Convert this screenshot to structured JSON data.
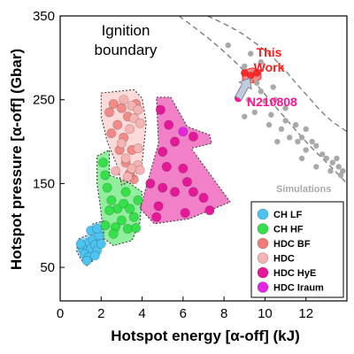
{
  "chart_data": {
    "type": "scatter",
    "xlabel": "Hotspot energy [α-off] (kJ)",
    "ylabel": "Hotspot pressure [α-off] (Gbar)",
    "xlim": [
      0,
      14
    ],
    "ylim": [
      10,
      350
    ],
    "xticks": [
      "0",
      "2",
      "4",
      "6",
      "8",
      "10",
      "12"
    ],
    "yticks": [
      "50",
      "150",
      "250",
      "350"
    ],
    "grid": false,
    "legend_position": "bottom-right",
    "annotations": {
      "ignition": [
        "Ignition",
        "boundary"
      ],
      "this_work": [
        "This",
        "Work"
      ],
      "shot": "N210808",
      "simulations": "Simulations"
    },
    "colors": {
      "this_work_text": "#ff1a1a",
      "shot_text": "#ff1493",
      "simulations": "#a9a9a9",
      "arrow_fill": "#c0ccdc",
      "arrow_stroke": "#7a8799"
    },
    "series": [
      {
        "name": "CH LF",
        "color": "#4cc3f0",
        "region": [
          [
            0.9,
            84
          ],
          [
            1.3,
            88
          ],
          [
            1.6,
            102
          ],
          [
            2.2,
            106
          ],
          [
            2.1,
            80
          ],
          [
            1.6,
            58
          ],
          [
            1.3,
            52
          ],
          [
            1.0,
            60
          ],
          [
            0.8,
            70
          ]
        ],
        "points": [
          [
            1.1,
            72
          ],
          [
            1.3,
            76
          ],
          [
            1.4,
            80
          ],
          [
            1.5,
            72
          ],
          [
            1.6,
            83
          ],
          [
            1.7,
            77
          ],
          [
            1.8,
            70
          ],
          [
            1.9,
            88
          ],
          [
            1.2,
            66
          ],
          [
            1.4,
            62
          ],
          [
            1.7,
            64
          ],
          [
            2.0,
            78
          ],
          [
            1.5,
            94
          ],
          [
            1.3,
            58
          ],
          [
            1.8,
            96
          ],
          [
            1.0,
            78
          ]
        ]
      },
      {
        "name": "CH HF",
        "color": "#35e04a",
        "region": [
          [
            1.8,
            183
          ],
          [
            2.4,
            190
          ],
          [
            2.4,
            160
          ],
          [
            3.3,
            152
          ],
          [
            4.0,
            140
          ],
          [
            3.9,
            104
          ],
          [
            3.5,
            82
          ],
          [
            2.6,
            76
          ],
          [
            2.1,
            85
          ],
          [
            2.0,
            115
          ],
          [
            1.8,
            150
          ]
        ],
        "points": [
          [
            2.1,
            175
          ],
          [
            2.2,
            160
          ],
          [
            2.3,
            145
          ],
          [
            2.5,
            130
          ],
          [
            2.8,
            120
          ],
          [
            3.1,
            126
          ],
          [
            3.4,
            120
          ],
          [
            3.6,
            110
          ],
          [
            3.0,
            106
          ],
          [
            2.7,
            98
          ],
          [
            3.8,
            130
          ],
          [
            2.4,
            118
          ],
          [
            3.2,
            140
          ],
          [
            2.6,
            90
          ],
          [
            3.3,
            96
          ],
          [
            2.2,
            100
          ],
          [
            3.7,
            97
          ]
        ]
      },
      {
        "name": "HDC BF",
        "color": "#f07b78",
        "region": [
          [
            2.0,
            258
          ],
          [
            3.6,
            262
          ],
          [
            4.0,
            252
          ],
          [
            4.2,
            222
          ],
          [
            4.0,
            175
          ],
          [
            3.6,
            155
          ],
          [
            3.0,
            148
          ],
          [
            2.8,
            170
          ],
          [
            2.3,
            200
          ],
          [
            2.0,
            230
          ]
        ],
        "points": [
          [
            2.4,
            235
          ],
          [
            2.5,
            210
          ],
          [
            2.6,
            245
          ],
          [
            2.8,
            220
          ],
          [
            2.9,
            190
          ],
          [
            3.0,
            240
          ],
          [
            3.1,
            205
          ],
          [
            3.2,
            175
          ],
          [
            3.3,
            230
          ],
          [
            3.5,
            190
          ],
          [
            3.6,
            155
          ],
          [
            3.7,
            245
          ],
          [
            3.4,
            162
          ]
        ]
      },
      {
        "name": "HDC",
        "color": "#f6b3b3",
        "points": [
          [
            3.1,
            250
          ],
          [
            3.5,
            243
          ],
          [
            3.8,
            238
          ],
          [
            3.6,
            228
          ],
          [
            3.9,
            222
          ],
          [
            3.4,
            215
          ],
          [
            3.0,
            198
          ],
          [
            3.8,
            192
          ],
          [
            3.2,
            180
          ],
          [
            3.8,
            172
          ],
          [
            2.7,
            165
          ],
          [
            3.5,
            168
          ],
          [
            3.3,
            158
          ],
          [
            3.9,
            166
          ]
        ]
      },
      {
        "name": "HDC HyE",
        "color": "#e6189a",
        "region": [
          [
            4.7,
            253
          ],
          [
            5.4,
            253
          ],
          [
            6.2,
            218
          ],
          [
            7.3,
            208
          ],
          [
            7.4,
            198
          ],
          [
            6.4,
            192
          ],
          [
            8.3,
            128
          ],
          [
            6.3,
            108
          ],
          [
            4.6,
            102
          ],
          [
            3.9,
            120
          ],
          [
            4.8,
            198
          ]
        ],
        "points": [
          [
            4.9,
            238
          ],
          [
            5.3,
            220
          ],
          [
            5.6,
            200
          ],
          [
            6.0,
            168
          ],
          [
            5.0,
            188
          ],
          [
            4.4,
            150
          ],
          [
            5.2,
            170
          ],
          [
            6.2,
            152
          ],
          [
            5.0,
            145
          ],
          [
            6.5,
            140
          ],
          [
            4.8,
            123
          ],
          [
            6.1,
            115
          ],
          [
            7.0,
            133
          ],
          [
            4.7,
            110
          ],
          [
            6.5,
            206
          ],
          [
            5.6,
            140
          ],
          [
            7.3,
            118
          ]
        ]
      },
      {
        "name": "HDC Iraum",
        "color": "#e327e0",
        "points": [
          [
            6.0,
            212
          ]
        ]
      },
      {
        "name": "This Work",
        "color": "#ff2a2a",
        "region": [
          [
            8.9,
            285
          ],
          [
            9.4,
            288
          ],
          [
            9.8,
            285
          ],
          [
            9.8,
            275
          ],
          [
            9.4,
            270
          ],
          [
            8.9,
            274
          ]
        ],
        "points": [
          [
            9.0,
            282
          ],
          [
            9.3,
            279
          ],
          [
            9.6,
            282
          ]
        ]
      },
      {
        "name": "N210808",
        "color": "#ff1493",
        "points": [
          [
            8.7,
            252
          ]
        ]
      },
      {
        "name": "Simulations",
        "color": "#a9a9a9",
        "points": [
          [
            8.2,
            315
          ],
          [
            9.0,
            290
          ],
          [
            9.3,
            305
          ],
          [
            9.6,
            270
          ],
          [
            9.8,
            260
          ],
          [
            9.2,
            250
          ],
          [
            10.0,
            248
          ],
          [
            10.3,
            232
          ],
          [
            10.5,
            250
          ],
          [
            11.0,
            240
          ],
          [
            10.8,
            215
          ],
          [
            11.5,
            220
          ],
          [
            11.8,
            205
          ],
          [
            12.0,
            215
          ],
          [
            12.3,
            200
          ],
          [
            12.5,
            195
          ],
          [
            11.0,
            225
          ],
          [
            11.6,
            200
          ],
          [
            12.8,
            185
          ],
          [
            13.0,
            180
          ],
          [
            13.3,
            175
          ],
          [
            13.6,
            170
          ],
          [
            13.8,
            165
          ],
          [
            13.5,
            180
          ],
          [
            12.0,
            190
          ],
          [
            11.2,
            205
          ],
          [
            10.2,
            220
          ],
          [
            9.5,
            235
          ],
          [
            9.0,
            230
          ],
          [
            8.8,
            260
          ],
          [
            10.6,
            200
          ],
          [
            12.5,
            170
          ],
          [
            13.2,
            165
          ],
          [
            13.7,
            160
          ],
          [
            9.8,
            295
          ],
          [
            10.4,
            265
          ],
          [
            11.8,
            180
          ]
        ]
      }
    ],
    "boundaries": [
      [
        [
          7.2,
          350
        ],
        [
          8.8,
          330
        ],
        [
          10.4,
          300
        ],
        [
          11.8,
          262
        ],
        [
          13.0,
          230
        ],
        [
          14.0,
          212
        ]
      ],
      [
        [
          5.8,
          350
        ],
        [
          7.4,
          320
        ],
        [
          9.0,
          284
        ],
        [
          10.5,
          242
        ],
        [
          12.0,
          200
        ],
        [
          13.3,
          168
        ],
        [
          14.0,
          150
        ]
      ]
    ]
  }
}
